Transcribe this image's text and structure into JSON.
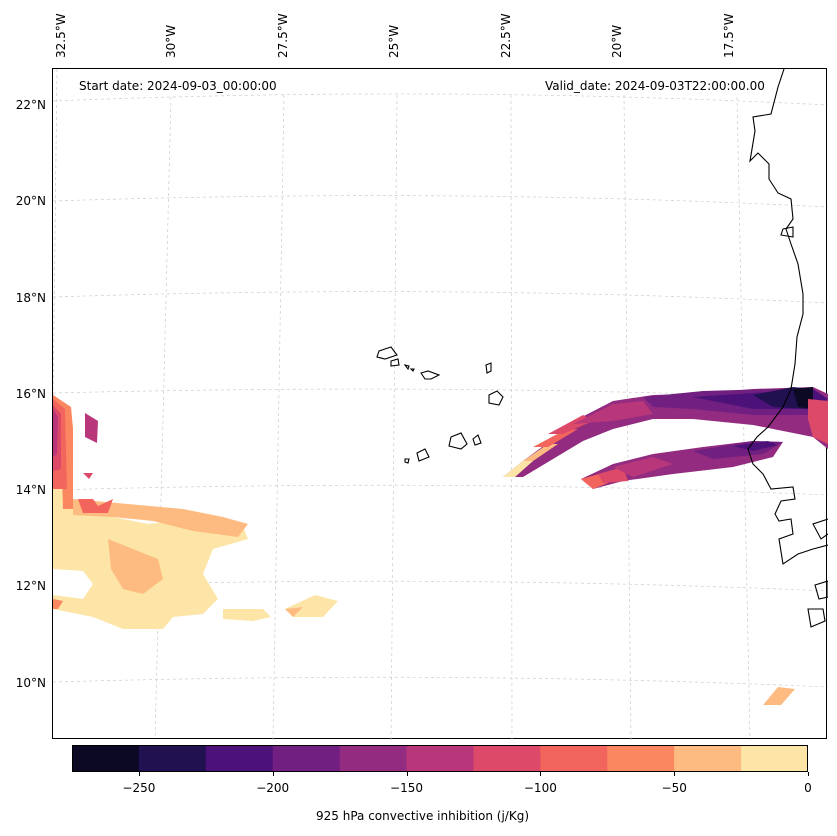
{
  "header": {
    "start_date": "Start date: 2024-09-03_00:00:00",
    "valid_date": "Valid_date: 2024-09-03T22:00:00.00"
  },
  "longitude_labels": [
    "32.5°W",
    "30°W",
    "27.5°W",
    "25°W",
    "22.5°W",
    "20°W",
    "17.5°W"
  ],
  "latitude_labels": [
    "22°N",
    "20°N",
    "18°N",
    "16°N",
    "14°N",
    "12°N",
    "10°N"
  ],
  "colorbar": {
    "label": "925 hPa convective inhibition (j/Kg)",
    "ticks": [
      "−250",
      "−200",
      "−150",
      "−100",
      "−50",
      "0"
    ],
    "colors": [
      "#0b0924",
      "#221150",
      "#4c1279",
      "#711f81",
      "#932b80",
      "#b8367a",
      "#dd4a69",
      "#f2655c",
      "#fb8761",
      "#febb81",
      "#fde5a7"
    ]
  },
  "legend_levels": [
    -275,
    -250,
    -225,
    -200,
    -175,
    -150,
    -125,
    -100,
    -75,
    -50,
    -25,
    0
  ]
}
